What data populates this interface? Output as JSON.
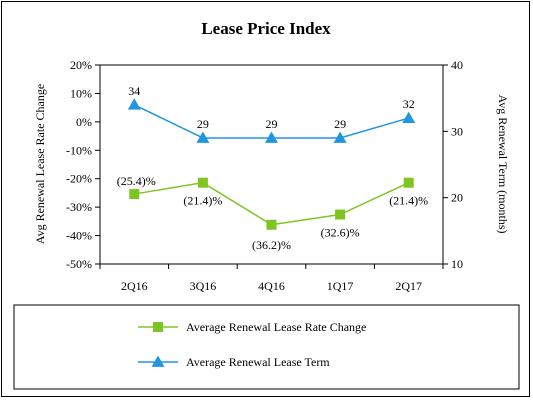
{
  "chart_data": {
    "type": "line",
    "title": "Lease Price Index",
    "categories": [
      "2Q16",
      "3Q16",
      "4Q16",
      "1Q17",
      "2Q17"
    ],
    "y_left": {
      "label": "Avg Renewal Lease Rate Change",
      "range": [
        -50,
        20
      ],
      "ticks": [
        20,
        10,
        0,
        -10,
        -20,
        -30,
        -40,
        -50
      ],
      "tick_labels": [
        "20%",
        "10%",
        "0%",
        "-10%",
        "-20%",
        "-30%",
        "-40%",
        "-50%"
      ]
    },
    "y_right": {
      "label": "Avg Renewal Term (months)",
      "range": [
        10,
        40
      ],
      "ticks": [
        40,
        30,
        20,
        10
      ],
      "tick_labels": [
        "40",
        "30",
        "20",
        "10"
      ]
    },
    "series": [
      {
        "name": "Average Renewal Lease Rate Change",
        "axis": "left",
        "color": "#7ec522",
        "marker": "square",
        "values": [
          -25.4,
          -21.4,
          -36.2,
          -32.6,
          -21.4
        ],
        "labels": [
          "(25.4)%",
          "(21.4)%",
          "(36.2)%",
          "(32.6)%",
          "(21.4)%"
        ]
      },
      {
        "name": "Average Renewal Lease Term",
        "axis": "right",
        "color": "#2196e0",
        "marker": "triangle",
        "values": [
          34,
          29,
          29,
          29,
          32
        ],
        "labels": [
          "34",
          "29",
          "29",
          "29",
          "32"
        ]
      }
    ],
    "grid": false,
    "legend_position": "bottom"
  }
}
